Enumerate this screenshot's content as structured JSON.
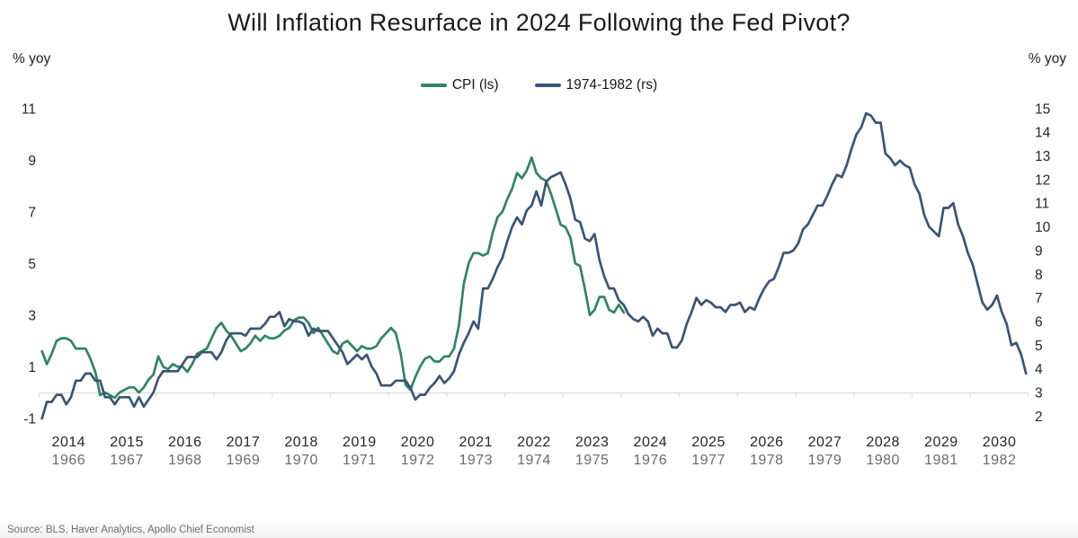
{
  "source": "Source: BLS, Haver Analytics, Apollo Chief Economist",
  "chart_data": {
    "type": "line",
    "title": "Will Inflation Resurface in 2024 Following the Fed Pivot?",
    "grid": "horizontal zero-line only",
    "legend_position": "top-center",
    "left_axis": {
      "label": "% yoy",
      "ticks": [
        11,
        9,
        7,
        5,
        3,
        1,
        -1
      ],
      "range": [
        -1,
        11
      ]
    },
    "right_axis": {
      "label": "% yoy",
      "ticks": [
        15,
        14,
        13,
        12,
        11,
        10,
        9,
        8,
        7,
        6,
        5,
        4,
        3,
        2
      ],
      "range": [
        2,
        15
      ]
    },
    "x_axis": {
      "primary_years": [
        "2014",
        "2015",
        "2016",
        "2017",
        "2018",
        "2019",
        "2020",
        "2021",
        "2022",
        "2023",
        "2024",
        "2025",
        "2026",
        "2027",
        "2028",
        "2029",
        "2030"
      ],
      "secondary_years": [
        "1966",
        "1967",
        "1968",
        "1969",
        "1970",
        "1971",
        "1972",
        "1973",
        "1974",
        "1975",
        "1976",
        "1977",
        "1978",
        "1979",
        "1980",
        "1981",
        "1982"
      ]
    },
    "series": [
      {
        "name": "CPI (ls)",
        "axis": "left",
        "color": "#2F8564",
        "start": "2014-01",
        "frequency": "monthly",
        "values": [
          1.6,
          1.1,
          1.5,
          2.0,
          2.1,
          2.1,
          2.0,
          1.7,
          1.7,
          1.7,
          1.3,
          0.8,
          -0.1,
          0.0,
          -0.1,
          -0.2,
          0.0,
          0.1,
          0.2,
          0.2,
          0.0,
          0.2,
          0.5,
          0.7,
          1.4,
          1.0,
          0.9,
          1.1,
          1.0,
          1.0,
          0.8,
          1.1,
          1.5,
          1.6,
          1.7,
          2.1,
          2.5,
          2.7,
          2.4,
          2.2,
          1.9,
          1.6,
          1.7,
          1.9,
          2.2,
          2.0,
          2.2,
          2.1,
          2.1,
          2.2,
          2.4,
          2.5,
          2.8,
          2.9,
          2.9,
          2.7,
          2.3,
          2.5,
          2.2,
          1.9,
          1.6,
          1.5,
          1.9,
          2.0,
          1.8,
          1.6,
          1.8,
          1.7,
          1.7,
          1.8,
          2.1,
          2.3,
          2.5,
          2.3,
          1.5,
          0.3,
          0.1,
          0.6,
          1.0,
          1.3,
          1.4,
          1.2,
          1.2,
          1.4,
          1.4,
          1.7,
          2.6,
          4.2,
          5.0,
          5.4,
          5.4,
          5.3,
          5.4,
          6.2,
          6.8,
          7.0,
          7.5,
          7.9,
          8.5,
          8.3,
          8.6,
          9.1,
          8.5,
          8.3,
          8.2,
          7.7,
          7.1,
          6.5,
          6.4,
          6.0,
          5.0,
          4.9,
          4.0,
          3.0,
          3.2,
          3.7,
          3.7,
          3.2,
          3.1,
          3.4,
          3.1
        ]
      },
      {
        "name": "1974-1982 (rs)",
        "axis": "right",
        "color": "#3A5477",
        "start": "1966-01",
        "frequency": "monthly",
        "values": [
          1.9,
          2.6,
          2.6,
          2.9,
          2.9,
          2.5,
          2.8,
          3.5,
          3.5,
          3.8,
          3.8,
          3.5,
          3.5,
          2.8,
          2.8,
          2.5,
          2.8,
          2.8,
          2.8,
          2.4,
          2.8,
          2.4,
          2.7,
          3.0,
          3.6,
          3.9,
          3.9,
          3.9,
          3.9,
          4.2,
          4.5,
          4.5,
          4.5,
          4.7,
          4.7,
          4.7,
          4.4,
          4.7,
          5.2,
          5.5,
          5.5,
          5.5,
          5.4,
          5.7,
          5.7,
          5.7,
          5.9,
          6.2,
          6.2,
          6.4,
          5.8,
          6.1,
          6.0,
          6.0,
          5.9,
          5.4,
          5.7,
          5.6,
          5.6,
          5.6,
          5.3,
          5.0,
          4.7,
          4.2,
          4.4,
          4.6,
          4.4,
          4.6,
          4.1,
          3.8,
          3.3,
          3.3,
          3.3,
          3.5,
          3.5,
          3.5,
          3.2,
          2.7,
          2.9,
          2.9,
          3.2,
          3.4,
          3.7,
          3.4,
          3.6,
          3.9,
          4.6,
          5.1,
          5.5,
          6.0,
          5.7,
          7.4,
          7.4,
          7.8,
          8.3,
          8.7,
          9.4,
          10.0,
          10.4,
          10.1,
          10.7,
          10.9,
          11.5,
          10.9,
          11.9,
          12.1,
          12.2,
          12.3,
          11.8,
          11.2,
          10.3,
          10.2,
          9.5,
          9.4,
          9.7,
          8.6,
          7.9,
          7.4,
          7.4,
          6.9,
          6.7,
          6.3,
          6.1,
          6.0,
          6.2,
          6.0,
          5.4,
          5.7,
          5.5,
          5.5,
          4.9,
          4.9,
          5.2,
          5.9,
          6.4,
          7.0,
          6.7,
          6.9,
          6.8,
          6.6,
          6.6,
          6.4,
          6.7,
          6.7,
          6.8,
          6.4,
          6.6,
          6.5,
          7.0,
          7.4,
          7.7,
          7.8,
          8.3,
          8.9,
          8.9,
          9.0,
          9.3,
          9.9,
          10.1,
          10.5,
          10.9,
          10.9,
          11.3,
          11.8,
          12.2,
          12.1,
          12.6,
          13.3,
          13.9,
          14.2,
          14.8,
          14.7,
          14.4,
          14.4,
          13.1,
          12.9,
          12.6,
          12.8,
          12.6,
          12.5,
          11.8,
          11.4,
          10.5,
          10.0,
          9.8,
          9.6,
          10.8,
          10.8,
          11.0,
          10.1,
          9.6,
          8.9,
          8.4,
          7.6,
          6.8,
          6.5,
          6.7,
          7.1,
          6.4,
          5.9,
          5.0,
          5.1,
          4.6,
          3.8
        ]
      }
    ]
  }
}
